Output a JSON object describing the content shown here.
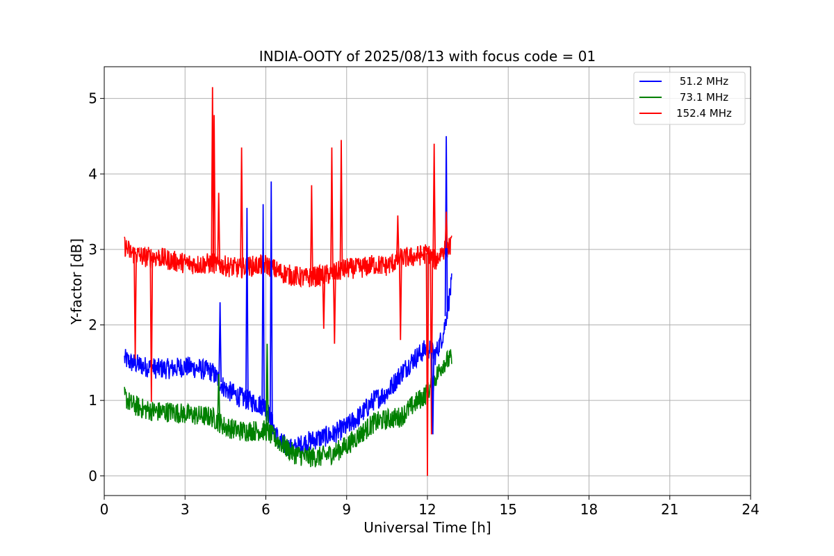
{
  "chart_data": {
    "type": "line",
    "title": "INDIA-OOTY of 2025/08/13 with focus code = 01",
    "xlabel": "Universal Time [h]",
    "ylabel": "Y-factor [dB]",
    "xlim": [
      0,
      24
    ],
    "ylim": [
      -0.26,
      5.42
    ],
    "xticks": [
      0,
      3,
      6,
      9,
      12,
      15,
      18,
      21,
      24
    ],
    "yticks": [
      0,
      1,
      2,
      3,
      4,
      5
    ],
    "grid": true,
    "legend_position": "top-right",
    "series": [
      {
        "name": "51.2 MHz",
        "color": "#0000ff",
        "x": [
          0.75,
          1.0,
          1.5,
          2.0,
          2.5,
          3.0,
          3.5,
          4.0,
          4.5,
          5.0,
          5.5,
          6.0,
          6.5,
          7.0,
          7.5,
          8.0,
          8.5,
          9.0,
          9.5,
          10.0,
          10.5,
          11.0,
          11.5,
          12.0,
          12.3,
          12.6,
          12.9
        ],
        "y": [
          1.55,
          1.5,
          1.45,
          1.42,
          1.42,
          1.45,
          1.42,
          1.38,
          1.15,
          1.05,
          0.98,
          0.92,
          0.45,
          0.35,
          0.45,
          0.5,
          0.55,
          0.65,
          0.8,
          1.0,
          1.1,
          1.35,
          1.55,
          1.7,
          1.6,
          1.9,
          2.55
        ]
      },
      {
        "name": "73.1 MHz",
        "color": "#008000",
        "x": [
          0.75,
          1.0,
          1.5,
          2.0,
          2.5,
          3.0,
          3.5,
          4.0,
          4.5,
          5.0,
          5.5,
          6.0,
          6.5,
          7.0,
          7.5,
          8.0,
          8.5,
          9.0,
          9.5,
          10.0,
          10.5,
          11.0,
          11.5,
          12.0,
          12.3,
          12.6,
          12.9
        ],
        "y": [
          1.05,
          0.95,
          0.88,
          0.85,
          0.85,
          0.82,
          0.8,
          0.78,
          0.65,
          0.6,
          0.6,
          0.6,
          0.45,
          0.3,
          0.25,
          0.25,
          0.3,
          0.4,
          0.55,
          0.7,
          0.75,
          0.78,
          0.95,
          1.1,
          1.3,
          1.5,
          1.55
        ]
      },
      {
        "name": "152.4 MHz",
        "color": "#ff0000",
        "x": [
          0.75,
          1.0,
          1.5,
          2.0,
          2.5,
          3.0,
          3.5,
          4.0,
          4.5,
          5.0,
          5.5,
          6.0,
          6.5,
          7.0,
          7.5,
          8.0,
          8.5,
          9.0,
          9.5,
          10.0,
          10.5,
          11.0,
          11.5,
          12.0,
          12.3,
          12.6,
          12.9
        ],
        "y": [
          3.05,
          2.95,
          2.9,
          2.9,
          2.85,
          2.82,
          2.8,
          2.82,
          2.78,
          2.75,
          2.78,
          2.8,
          2.7,
          2.65,
          2.62,
          2.65,
          2.68,
          2.75,
          2.75,
          2.8,
          2.78,
          2.88,
          2.9,
          2.95,
          2.85,
          3.0,
          3.05
        ]
      }
    ],
    "spikes": [
      {
        "series": 0,
        "x": 6.2,
        "y": 3.9
      },
      {
        "series": 0,
        "x": 5.3,
        "y": 3.55
      },
      {
        "series": 0,
        "x": 5.9,
        "y": 3.6
      },
      {
        "series": 0,
        "x": 12.7,
        "y": 4.5
      },
      {
        "series": 0,
        "x": 4.3,
        "y": 2.3
      },
      {
        "series": 1,
        "x": 6.05,
        "y": 1.75
      },
      {
        "series": 1,
        "x": 4.25,
        "y": 1.35
      },
      {
        "series": 2,
        "x": 4.02,
        "y": 5.15
      },
      {
        "series": 2,
        "x": 4.08,
        "y": 4.78
      },
      {
        "series": 2,
        "x": 4.25,
        "y": 3.75
      },
      {
        "series": 2,
        "x": 5.1,
        "y": 4.35
      },
      {
        "series": 2,
        "x": 7.7,
        "y": 3.85
      },
      {
        "series": 2,
        "x": 8.45,
        "y": 4.35
      },
      {
        "series": 2,
        "x": 8.8,
        "y": 4.45
      },
      {
        "series": 2,
        "x": 10.9,
        "y": 3.45
      },
      {
        "series": 2,
        "x": 12.25,
        "y": 4.4
      },
      {
        "series": 2,
        "x": 12.7,
        "y": 3.5
      }
    ],
    "dips": [
      {
        "series": 2,
        "x": 1.75,
        "y": 0.98
      },
      {
        "series": 2,
        "x": 1.15,
        "y": 1.55
      },
      {
        "series": 2,
        "x": 12.0,
        "y": 0.0
      },
      {
        "series": 2,
        "x": 8.55,
        "y": 1.75
      },
      {
        "series": 2,
        "x": 8.15,
        "y": 1.95
      },
      {
        "series": 2,
        "x": 11.0,
        "y": 1.8
      },
      {
        "series": 2,
        "x": 12.15,
        "y": 0.55
      },
      {
        "series": 0,
        "x": 12.2,
        "y": 0.55
      }
    ]
  }
}
